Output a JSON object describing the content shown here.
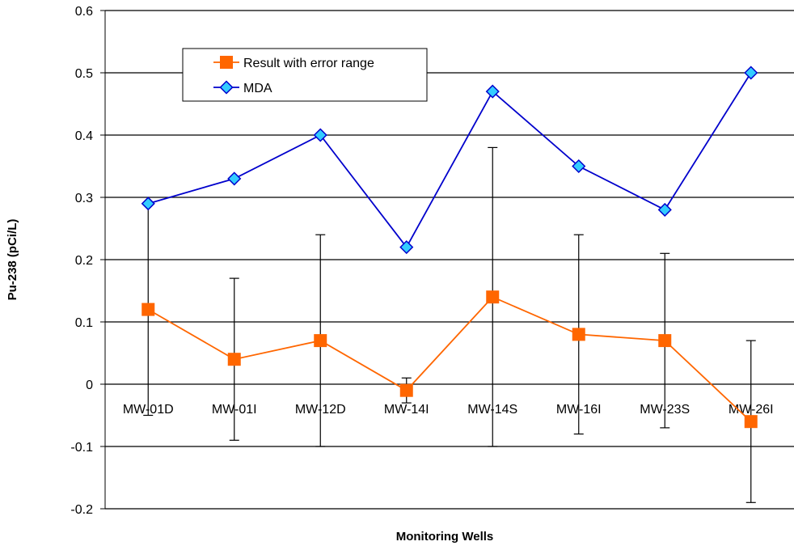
{
  "chart_data": {
    "type": "line",
    "xlabel": "Monitoring Wells",
    "ylabel": "Pu-238 (pCi/L)",
    "categories": [
      "MW-01D",
      "MW-01I",
      "MW-12D",
      "MW-14I",
      "MW-14S",
      "MW-16I",
      "MW-23S",
      "MW-26I"
    ],
    "ylim": [
      -0.2,
      0.6
    ],
    "yticks": [
      0.6,
      0.5,
      0.4,
      0.3,
      0.2,
      0.1,
      0,
      -0.1,
      -0.2
    ],
    "ytick_labels": [
      "0.6",
      "0.5",
      "0.4",
      "0.3",
      "0.2",
      "0.1",
      "0",
      "-0.1",
      "-0.2"
    ],
    "grid": "horizontal",
    "legend_position": "top-left",
    "series": [
      {
        "name": "Result with error range",
        "color": "#ff6600",
        "line_color": "#ff6600",
        "marker": "square",
        "values": [
          0.12,
          0.04,
          0.07,
          -0.01,
          0.14,
          0.08,
          0.07,
          -0.06
        ],
        "error_low": [
          -0.05,
          -0.09,
          -0.1,
          -0.03,
          -0.1,
          -0.08,
          -0.07,
          -0.19
        ],
        "error_high": [
          0.29,
          0.17,
          0.24,
          0.01,
          0.38,
          0.24,
          0.21,
          0.07
        ]
      },
      {
        "name": "MDA",
        "color": "#33ccff",
        "line_color": "#0000cc",
        "marker": "diamond",
        "values": [
          0.29,
          0.33,
          0.4,
          0.22,
          0.47,
          0.35,
          0.28,
          0.5
        ]
      }
    ]
  }
}
